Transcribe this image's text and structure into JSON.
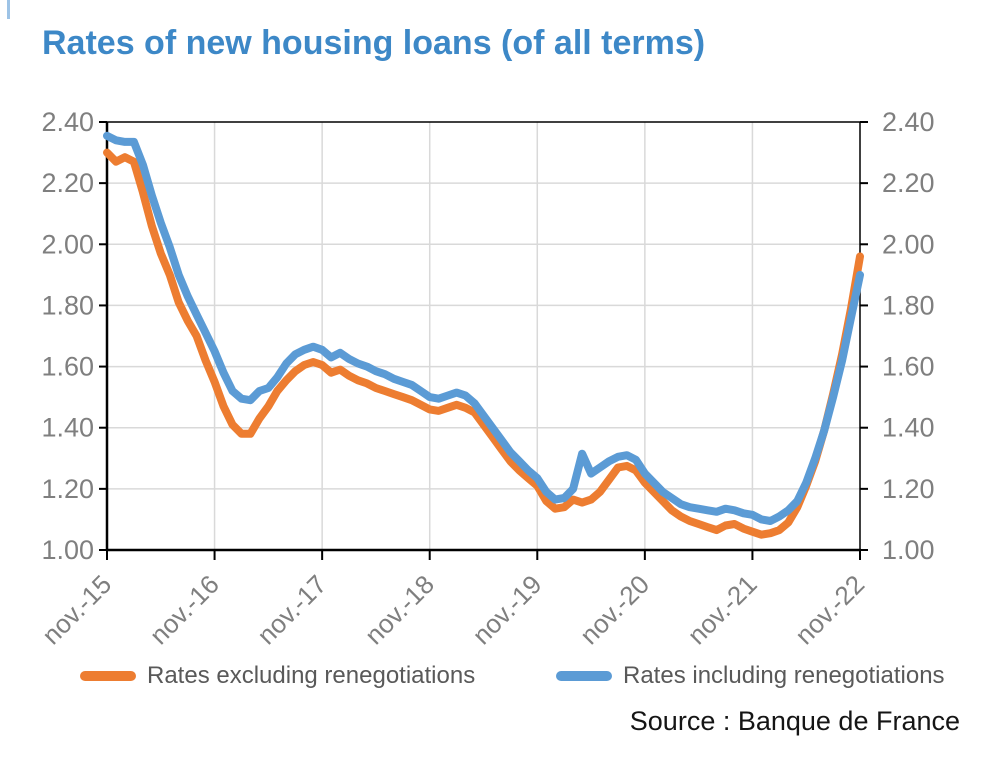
{
  "page": {
    "title": "Rates of new housing loans (of all terms)",
    "source": "Source : Banque de France",
    "title_color": "#3D88C7",
    "corner_mark_color": "#9DC3E6"
  },
  "legend": [
    {
      "label": "Rates excluding renegotiations",
      "color": "#ED7D31"
    },
    {
      "label": "Rates including renegotiations",
      "color": "#5B9BD5"
    }
  ],
  "chart_data": {
    "type": "line",
    "title": "Rates of new housing loans (of all terms)",
    "source": "Source : Banque de France",
    "x_tick_labels": [
      "nov.-15",
      "nov.-16",
      "nov.-17",
      "nov.-18",
      "nov.-19",
      "nov.-20",
      "nov.-21",
      "nov.-22"
    ],
    "y_tick_labels": [
      "1.00",
      "1.20",
      "1.40",
      "1.60",
      "1.80",
      "2.00",
      "2.20",
      "2.40"
    ],
    "ylim": [
      1.0,
      2.4
    ],
    "y_step": 0.2,
    "months_per_tick": 12,
    "x_range_months": 84,
    "grid": true,
    "dual_y_axis": true,
    "legend_position": "bottom",
    "grid_color": "#D9D9D9",
    "axis_color": "#000000",
    "tick_label_color": "#7F7F7F",
    "series": [
      {
        "name": "Rates excluding renegotiations",
        "color": "#ED7D31",
        "values": [
          2.3,
          2.27,
          2.285,
          2.27,
          2.17,
          2.06,
          1.97,
          1.9,
          1.81,
          1.75,
          1.7,
          1.62,
          1.55,
          1.47,
          1.41,
          1.38,
          1.38,
          1.43,
          1.47,
          1.52,
          1.555,
          1.585,
          1.605,
          1.615,
          1.605,
          1.58,
          1.59,
          1.57,
          1.555,
          1.545,
          1.53,
          1.52,
          1.51,
          1.5,
          1.49,
          1.475,
          1.46,
          1.455,
          1.465,
          1.475,
          1.465,
          1.45,
          1.41,
          1.37,
          1.33,
          1.29,
          1.26,
          1.235,
          1.21,
          1.16,
          1.135,
          1.14,
          1.165,
          1.155,
          1.165,
          1.19,
          1.23,
          1.27,
          1.275,
          1.26,
          1.22,
          1.19,
          1.16,
          1.13,
          1.11,
          1.095,
          1.085,
          1.075,
          1.065,
          1.08,
          1.085,
          1.07,
          1.06,
          1.05,
          1.055,
          1.065,
          1.09,
          1.14,
          1.21,
          1.29,
          1.39,
          1.51,
          1.64,
          1.79,
          1.96
        ]
      },
      {
        "name": "Rates including renegotiations",
        "color": "#5B9BD5",
        "values": [
          2.355,
          2.34,
          2.335,
          2.335,
          2.26,
          2.16,
          2.07,
          1.99,
          1.9,
          1.83,
          1.77,
          1.71,
          1.65,
          1.58,
          1.52,
          1.495,
          1.49,
          1.52,
          1.53,
          1.565,
          1.61,
          1.64,
          1.655,
          1.665,
          1.655,
          1.63,
          1.645,
          1.625,
          1.61,
          1.6,
          1.585,
          1.575,
          1.56,
          1.55,
          1.54,
          1.52,
          1.5,
          1.495,
          1.505,
          1.515,
          1.505,
          1.48,
          1.44,
          1.4,
          1.36,
          1.32,
          1.29,
          1.26,
          1.235,
          1.19,
          1.165,
          1.17,
          1.2,
          1.315,
          1.25,
          1.27,
          1.29,
          1.305,
          1.31,
          1.295,
          1.25,
          1.22,
          1.19,
          1.17,
          1.15,
          1.14,
          1.135,
          1.13,
          1.125,
          1.135,
          1.13,
          1.12,
          1.115,
          1.1,
          1.095,
          1.11,
          1.13,
          1.16,
          1.22,
          1.3,
          1.39,
          1.5,
          1.62,
          1.76,
          1.9
        ]
      }
    ]
  }
}
